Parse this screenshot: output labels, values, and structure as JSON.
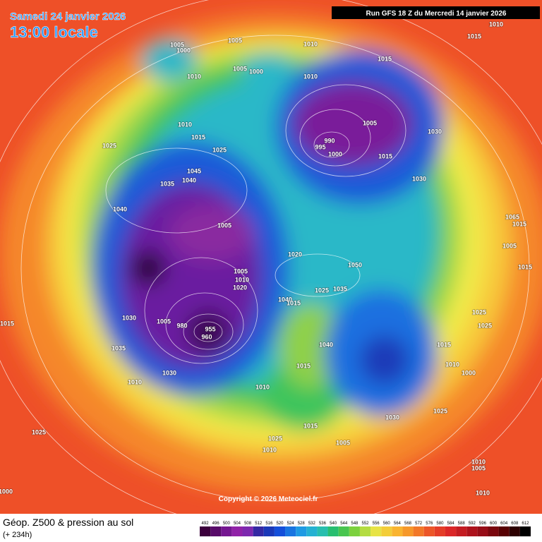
{
  "header": {
    "date": "Samedi 24 janvier 2026",
    "time": "13:00 locale",
    "run": "Run GFS 18 Z du Mercredi 14 janvier 2026"
  },
  "copyright": "Copyright © 2026 Meteociel.fr",
  "footer": {
    "title": "Géop. Z500 & pression au sol",
    "lead": "(+ 234h)"
  },
  "colorbar": {
    "ticks": [
      492,
      496,
      500,
      504,
      508,
      512,
      516,
      520,
      524,
      528,
      532,
      536,
      540,
      544,
      548,
      552,
      556,
      560,
      564,
      568,
      572,
      576,
      580,
      584,
      588,
      592,
      596,
      600,
      604,
      608,
      612
    ]
  },
  "isobar_labels": [
    1010,
    1015,
    1005,
    1010,
    1005,
    1000,
    1015,
    1005,
    1000,
    1010,
    1010,
    1005,
    1030,
    1010,
    1015,
    1025,
    1025,
    990,
    995,
    1000,
    1015,
    1045,
    1040,
    1035,
    1030,
    1040,
    1005,
    1065,
    1015,
    1005,
    1020,
    1050,
    1015,
    1005,
    1010,
    1020,
    1035,
    1025,
    1040,
    1015,
    1025,
    1030,
    1005,
    980,
    955,
    960,
    1025,
    1015,
    1040,
    1015,
    1035,
    1015,
    1010,
    1000,
    1030,
    1010,
    1010,
    1025,
    1030,
    1015,
    1025,
    1025,
    1005,
    1010,
    1010,
    1005,
    1000,
    1010
  ]
}
